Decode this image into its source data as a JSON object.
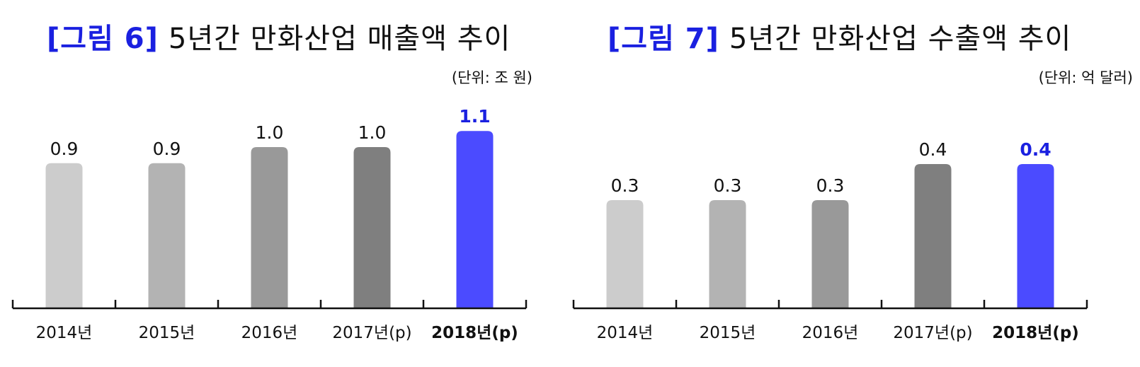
{
  "charts": [
    {
      "fig_label": "[그림 6]",
      "title": "5년간 만화산업 매출액 추이",
      "unit": "(단위: 조 원)"
    },
    {
      "fig_label": "[그림 7]",
      "title": "5년간 만화산업 수출액 추이",
      "unit": "(단위: 억 달러)"
    }
  ],
  "colors": {
    "bars": [
      "#cccccc",
      "#b3b3b3",
      "#999999",
      "#7f7f7f",
      "#4b4bff"
    ],
    "highlight_label": "#1a20e0",
    "axis": "#111111",
    "title_accent": "#1a20e0"
  },
  "chart_data": [
    {
      "type": "bar",
      "title": "5년간 만화산업 매출액 추이",
      "unit": "(단위: 조 원)",
      "categories": [
        "2014년",
        "2015년",
        "2016년",
        "2017년(p)",
        "2018년(p)"
      ],
      "values": [
        0.9,
        0.9,
        1.0,
        1.0,
        1.1
      ],
      "value_labels": [
        "0.9",
        "0.9",
        "1.0",
        "1.0",
        "1.1"
      ],
      "highlight_index": 4,
      "ylim": [
        0,
        1.2
      ],
      "grid": false,
      "legend": "none"
    },
    {
      "type": "bar",
      "title": "5년간 만화산업 수출액 추이",
      "unit": "(단위: 억 달러)",
      "categories": [
        "2014년",
        "2015년",
        "2016년",
        "2017년(p)",
        "2018년(p)"
      ],
      "values": [
        0.3,
        0.3,
        0.3,
        0.4,
        0.4
      ],
      "value_labels": [
        "0.3",
        "0.3",
        "0.3",
        "0.4",
        "0.4"
      ],
      "highlight_index": 4,
      "ylim": [
        0,
        0.6
      ],
      "grid": false,
      "legend": "none"
    }
  ]
}
